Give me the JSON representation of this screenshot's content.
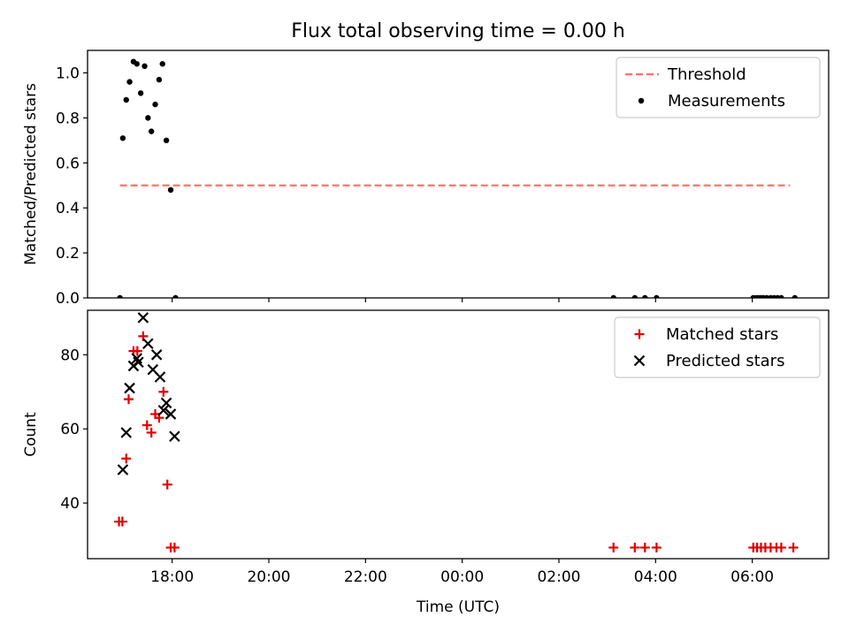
{
  "title": "Flux total observing time = 0.00 h",
  "colors": {
    "threshold": "#ff7070",
    "measurement": "#000000",
    "matched": "#e00000",
    "predicted": "#000000",
    "axis": "#000000",
    "legend_border": "#cccccc"
  },
  "chart_data": [
    {
      "type": "scatter",
      "panel": "top",
      "ylabel": "Matched/Predicted stars",
      "xlabel": "",
      "xlim_hours": [
        16.25,
        31.58
      ],
      "ylim": [
        0,
        1.1
      ],
      "yticks": [
        0,
        0.2,
        0.4,
        0.6,
        0.8,
        1.0
      ],
      "ytick_labels": [
        "0.0",
        "0.2",
        "0.4",
        "0.6",
        "0.8",
        "1.0"
      ],
      "xticks_hours": [
        18,
        20,
        22,
        24,
        26,
        28,
        30
      ],
      "show_xtick_labels": false,
      "legend_location": "top-right",
      "legend": [
        {
          "label": "Threshold",
          "kind": "dashed-line"
        },
        {
          "label": "Measurements",
          "kind": "dot"
        }
      ],
      "threshold": {
        "name": "Threshold",
        "value": 0.5,
        "x_start": 16.92,
        "x_end": 30.78
      },
      "series": [
        {
          "name": "Measurements",
          "marker": "dot",
          "x": [
            16.92,
            16.98,
            17.05,
            17.12,
            17.2,
            17.27,
            17.35,
            17.43,
            17.5,
            17.57,
            17.65,
            17.73,
            17.8,
            17.88,
            17.97,
            18.07,
            27.13,
            27.57,
            27.78,
            28.02,
            30.02,
            30.08,
            30.13,
            30.18,
            30.23,
            30.3,
            30.38,
            30.45,
            30.52,
            30.6,
            30.88
          ],
          "y": [
            0.0,
            0.71,
            0.88,
            0.96,
            1.05,
            1.04,
            0.91,
            1.03,
            0.8,
            0.74,
            0.86,
            0.97,
            1.04,
            0.7,
            0.48,
            0.0,
            0.0,
            0.0,
            0.0,
            0.0,
            0.0,
            0.0,
            0.0,
            0.0,
            0.0,
            0.0,
            0.0,
            0.0,
            0.0,
            0.0,
            0.0
          ]
        }
      ]
    },
    {
      "type": "scatter",
      "panel": "bottom",
      "ylabel": "Count",
      "xlabel": "Time (UTC)",
      "xlim_hours": [
        16.25,
        31.58
      ],
      "ylim": [
        25,
        92
      ],
      "yticks": [
        40,
        60,
        80
      ],
      "ytick_labels": [
        "40",
        "60",
        "80"
      ],
      "xticks_hours": [
        18,
        20,
        22,
        24,
        26,
        28,
        30
      ],
      "xtick_labels": [
        "18:00",
        "20:00",
        "22:00",
        "00:00",
        "02:00",
        "04:00",
        "06:00"
      ],
      "legend_location": "top-right",
      "legend": [
        {
          "label": "Matched stars",
          "kind": "plus"
        },
        {
          "label": "Predicted stars",
          "kind": "cross"
        }
      ],
      "series": [
        {
          "name": "Matched stars",
          "marker": "plus",
          "x": [
            16.9,
            16.97,
            17.05,
            17.1,
            17.2,
            17.28,
            17.4,
            17.48,
            17.57,
            17.65,
            17.73,
            17.82,
            17.9,
            17.97,
            18.05,
            27.13,
            27.57,
            27.78,
            28.02,
            30.02,
            30.1,
            30.18,
            30.27,
            30.38,
            30.5,
            30.6,
            30.85
          ],
          "y": [
            35,
            35,
            52,
            68,
            81,
            81,
            85,
            61,
            59,
            64,
            63,
            70,
            45,
            28,
            28,
            28,
            28,
            28,
            28,
            28,
            28,
            28,
            28,
            28,
            28,
            28,
            28
          ]
        },
        {
          "name": "Predicted stars",
          "marker": "cross",
          "x": [
            16.98,
            17.05,
            17.12,
            17.2,
            17.27,
            17.4,
            17.5,
            17.6,
            17.68,
            17.75,
            17.82,
            17.88,
            17.97,
            18.05,
            17.3
          ],
          "y": [
            49,
            59,
            71,
            77,
            79,
            90,
            83,
            76,
            80,
            74,
            65,
            67,
            64,
            58,
            78
          ]
        }
      ]
    }
  ]
}
